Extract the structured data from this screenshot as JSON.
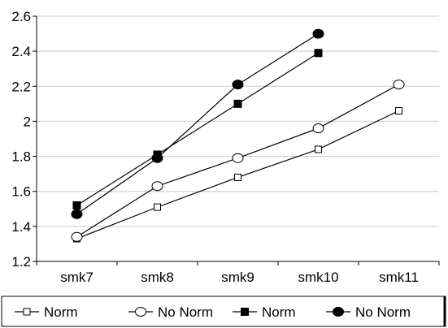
{
  "chart_data": {
    "type": "line",
    "title": "",
    "xlabel": "",
    "ylabel": "",
    "categories": [
      "smk7",
      "smk8",
      "smk9",
      "smk10",
      "smk11"
    ],
    "ylim": [
      1.2,
      2.6
    ],
    "yticks": [
      1.2,
      1.4,
      1.6,
      1.8,
      2,
      2.2,
      2.4,
      2.6
    ],
    "ytick_labels": [
      "1.2",
      "1.4",
      "1.6",
      "1.8",
      "2",
      "2.2",
      "2.4",
      "2.6"
    ],
    "grid": "horizontal",
    "legend_position": "bottom",
    "series": [
      {
        "name": "Norm",
        "marker": "open-square",
        "color": "#000000",
        "values": [
          1.33,
          1.51,
          1.68,
          1.84,
          2.06
        ]
      },
      {
        "name": "No Norm",
        "marker": "open-circle",
        "color": "#000000",
        "values": [
          1.34,
          1.63,
          1.79,
          1.96,
          2.21
        ]
      },
      {
        "name": "Norm",
        "marker": "filled-square",
        "color": "#000000",
        "values": [
          1.52,
          1.81,
          2.1,
          2.39,
          null
        ]
      },
      {
        "name": "No Norm",
        "marker": "filled-circle",
        "color": "#000000",
        "values": [
          1.47,
          1.79,
          2.21,
          2.5,
          null
        ]
      }
    ]
  }
}
